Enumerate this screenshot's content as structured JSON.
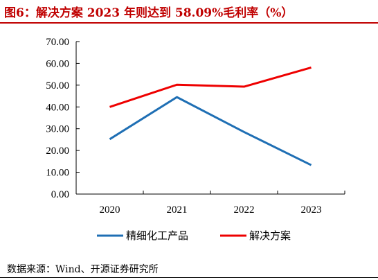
{
  "title": "图6：解决方案 2023 年则达到 58.09%毛利率（%）",
  "source": "数据来源：Wind、开源证券研究所",
  "chart_data": {
    "type": "line",
    "categories": [
      "2020",
      "2021",
      "2022",
      "2023"
    ],
    "series": [
      {
        "name": "精细化工产品",
        "color": "#1f6fb4",
        "values": [
          25.2,
          44.5,
          28.5,
          13.3
        ]
      },
      {
        "name": "解决方案",
        "color": "#ee0000",
        "values": [
          40.0,
          50.2,
          49.3,
          58.09
        ]
      }
    ],
    "ylim": [
      0,
      70
    ],
    "yticks": [
      "0.00",
      "10.00",
      "20.00",
      "30.00",
      "40.00",
      "50.00",
      "60.00",
      "70.00"
    ],
    "grid": false,
    "legend_position": "bottom"
  }
}
